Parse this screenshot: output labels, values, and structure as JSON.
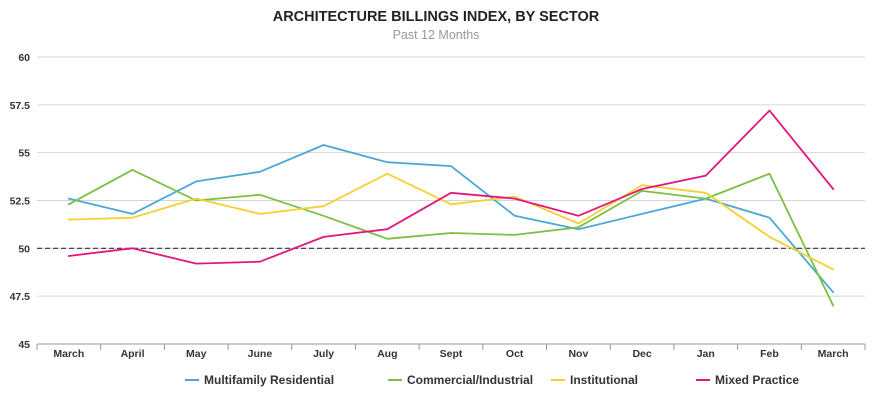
{
  "chart_data": {
    "type": "line",
    "title": "ARCHITECTURE BILLINGS INDEX, BY SECTOR",
    "subtitle": "Past 12 Months",
    "xlabel": "",
    "ylabel": "",
    "categories": [
      "March",
      "April",
      "May",
      "June",
      "July",
      "Aug",
      "Sept",
      "Oct",
      "Nov",
      "Dec",
      "Jan",
      "Feb",
      "March"
    ],
    "ylim": [
      45,
      60
    ],
    "yticks": [
      45,
      47.5,
      50,
      52.5,
      55,
      57.5,
      60
    ],
    "ytick_labels": [
      "45",
      "47.5",
      "50",
      "52.5",
      "55",
      "57.5",
      "60"
    ],
    "reference_line": 50,
    "grid": true,
    "legend_position": "bottom",
    "series": [
      {
        "name": "Multifamily Residential",
        "color": "#4aa8d8",
        "values": [
          52.6,
          51.8,
          53.5,
          54.0,
          55.4,
          54.5,
          54.3,
          51.7,
          51.0,
          51.8,
          52.6,
          51.6,
          47.7
        ]
      },
      {
        "name": "Commercial/Industrial",
        "color": "#7ac143",
        "values": [
          52.3,
          54.1,
          52.5,
          52.8,
          51.7,
          50.5,
          50.8,
          50.7,
          51.1,
          53.0,
          52.6,
          53.9,
          47.0
        ]
      },
      {
        "name": "Institutional",
        "color": "#f5d033",
        "values": [
          51.5,
          51.6,
          52.6,
          51.8,
          52.2,
          53.9,
          52.3,
          52.7,
          51.3,
          53.3,
          52.9,
          50.6,
          48.9
        ]
      },
      {
        "name": "Mixed Practice",
        "color": "#e0177f",
        "values": [
          49.6,
          50.0,
          49.2,
          49.3,
          50.6,
          51.0,
          52.9,
          52.6,
          51.7,
          53.1,
          53.8,
          57.2,
          53.1
        ]
      }
    ]
  }
}
